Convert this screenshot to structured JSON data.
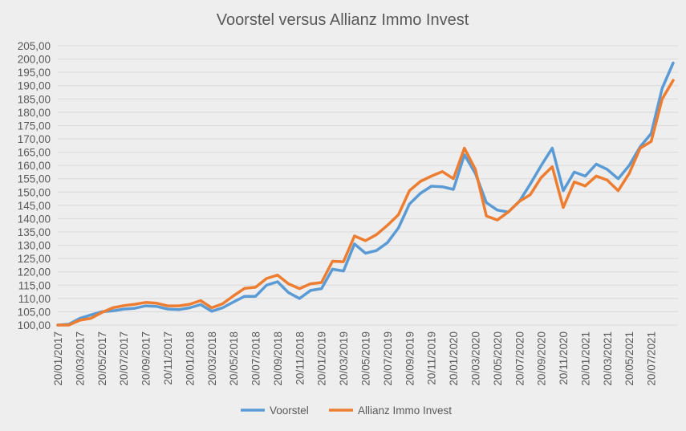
{
  "chart_data": {
    "type": "line",
    "title": "Voorstel versus Allianz Immo Invest",
    "xlabel": "",
    "ylabel": "",
    "ylim": [
      100,
      205
    ],
    "ytick_step": 5,
    "yticks": [
      "100,00",
      "105,00",
      "110,00",
      "115,00",
      "120,00",
      "125,00",
      "130,00",
      "135,00",
      "140,00",
      "145,00",
      "150,00",
      "155,00",
      "160,00",
      "165,00",
      "170,00",
      "175,00",
      "180,00",
      "185,00",
      "190,00",
      "195,00",
      "200,00",
      "205,00"
    ],
    "xtick_labels": [
      "20/01/2017",
      "20/03/2017",
      "20/05/2017",
      "20/07/2017",
      "20/09/2017",
      "20/11/2017",
      "20/01/2018",
      "20/03/2018",
      "20/05/2018",
      "20/07/2018",
      "20/09/2018",
      "20/11/2018",
      "20/01/2019",
      "20/03/2019",
      "20/05/2019",
      "20/07/2019",
      "20/09/2019",
      "20/11/2019",
      "20/01/2020",
      "20/03/2020",
      "20/05/2020",
      "20/07/2020",
      "20/09/2020",
      "20/11/2020",
      "20/01/2021",
      "20/03/2021",
      "20/05/2021",
      "20/07/2021"
    ],
    "xtick_every": 2,
    "grid": true,
    "legend_position": "bottom",
    "series": [
      {
        "name": "Voorstel",
        "color": "#5b9bd5",
        "values": [
          100,
          100.3,
          102.5,
          103.8,
          105,
          105.3,
          106,
          106.3,
          107.2,
          107,
          106,
          105.8,
          106.5,
          107.7,
          105.2,
          106.5,
          108.7,
          110.8,
          110.8,
          115,
          116.3,
          112.2,
          110,
          113,
          113.7,
          121,
          120.3,
          130.5,
          127,
          128,
          131,
          136.5,
          145.5,
          149.5,
          152.2,
          152,
          151,
          164,
          157,
          146,
          143.2,
          142.5,
          146.5,
          153,
          160,
          166.5,
          150.5,
          157.5,
          156,
          160.5,
          158.5,
          155,
          160,
          167,
          172,
          189,
          198.5
        ]
      },
      {
        "name": "Allianz Immo Invest",
        "color": "#ed7d31",
        "values": [
          100,
          100,
          101.8,
          102.5,
          104.7,
          106.5,
          107.3,
          107.8,
          108.5,
          108.2,
          107.2,
          107.2,
          107.8,
          109.2,
          106.5,
          108,
          111,
          113.8,
          114.2,
          117.5,
          118.8,
          115.5,
          113.7,
          115.5,
          116,
          124,
          123.8,
          133.5,
          131.7,
          134,
          137.5,
          141.5,
          150.5,
          154,
          156,
          157.7,
          155,
          166.5,
          158.5,
          141,
          139.5,
          142.5,
          146.5,
          149,
          155.5,
          159.5,
          144.2,
          153.8,
          152.3,
          156,
          154.5,
          150.5,
          157,
          166.5,
          169,
          185,
          192
        ]
      }
    ]
  }
}
